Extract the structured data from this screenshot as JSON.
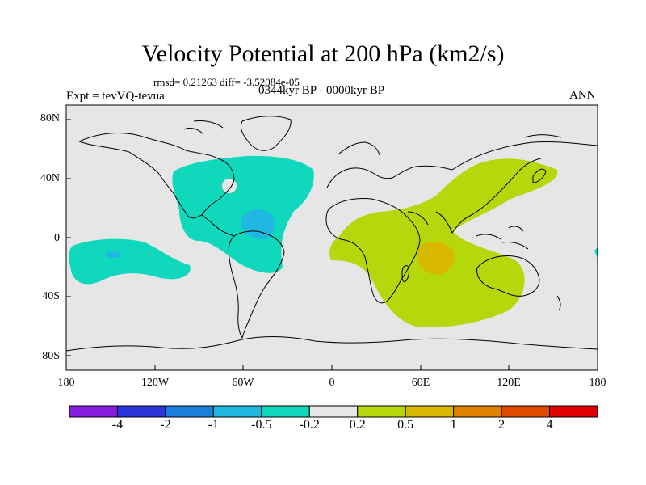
{
  "title": "Velocity Potential at 200 hPa (km2/s)",
  "stats": "rmsd= 0.21263 diff= -3.52084e-05",
  "expt": "Expt = tevVQ-tevua",
  "period": "0344kyr BP - 0000kyr BP",
  "season": "ANN",
  "y_ticks": [
    "80N",
    "40N",
    "0",
    "40S",
    "80S"
  ],
  "x_ticks": [
    "180",
    "120W",
    "60W",
    "0",
    "60E",
    "120E",
    "180"
  ],
  "colorbar": {
    "labels": [
      "-4",
      "-2",
      "-1",
      "-0.5",
      "-0.2",
      "0.2",
      "0.5",
      "1",
      "2",
      "4"
    ],
    "colors": [
      "#8a1ee0",
      "#2a35dc",
      "#1a7fdc",
      "#1fb8e0",
      "#10d8bc",
      "#e6e6e6",
      "#b4d80c",
      "#d8b800",
      "#e08200",
      "#e04a00",
      "#e00000"
    ]
  },
  "map_colors": {
    "land_outline": "#000000",
    "background": "#e6e6e6"
  }
}
